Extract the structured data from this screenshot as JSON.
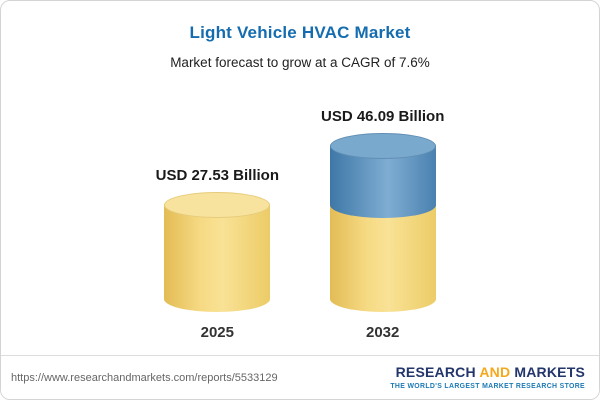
{
  "header": {
    "title": "Light Vehicle HVAC Market",
    "subtitle": "Market forecast to grow at a CAGR of 7.6%"
  },
  "chart_data": {
    "type": "bar",
    "title": "Light Vehicle HVAC Market",
    "subtitle": "Market forecast to grow at a CAGR of 7.6%",
    "categories": [
      "2025",
      "2032"
    ],
    "values": [
      27.53,
      46.09
    ],
    "value_labels": [
      "USD 27.53 Billion",
      "USD 46.09 Billion"
    ],
    "unit": "USD Billion",
    "cagr_percent": 7.6,
    "colors": {
      "base_segment": "#f4d470",
      "growth_segment": "#4e86b4",
      "title": "#156daf"
    },
    "legend_position": "none",
    "grid": false
  },
  "footer": {
    "url": "https://www.researchandmarkets.com/reports/5533129",
    "logo": {
      "part_research": "RESEARCH ",
      "part_and": "AND",
      "part_markets": " MARKETS",
      "tagline": "THE WORLD'S LARGEST MARKET RESEARCH STORE"
    }
  }
}
